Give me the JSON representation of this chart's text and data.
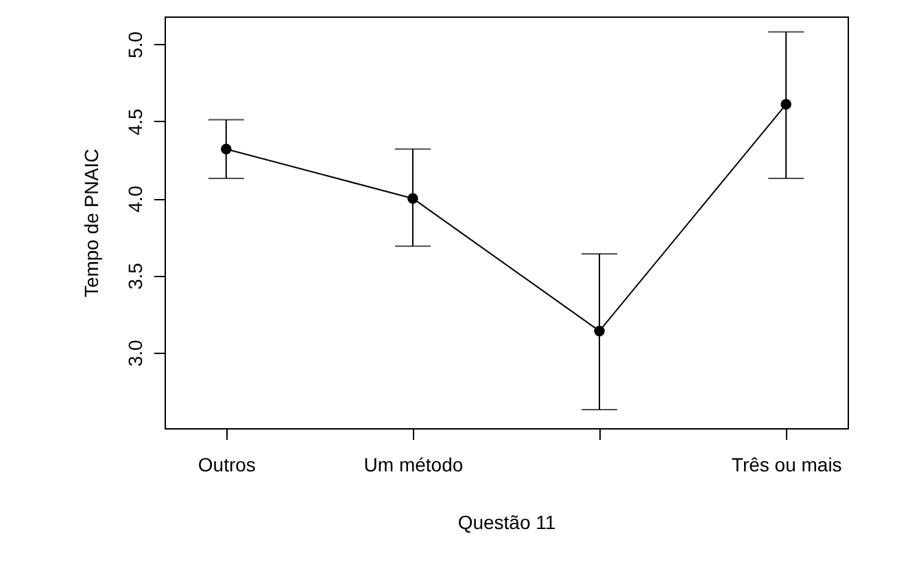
{
  "chart_data": {
    "type": "line",
    "xlabel": "Questão 11",
    "ylabel": "Tempo de PNAIC",
    "categories": [
      "Outros",
      "Um método",
      null,
      "Três ou mais"
    ],
    "values": [
      4.32,
      4.0,
      3.14,
      4.61
    ],
    "errors": [
      [
        4.13,
        4.51
      ],
      [
        3.69,
        4.32
      ],
      [
        2.63,
        3.64
      ],
      [
        4.13,
        5.08
      ]
    ],
    "color": "#000000",
    "marker": "circle",
    "line_style": "solid",
    "grid": false,
    "ylim": [
      2.51,
      5.18
    ],
    "yticks": [
      {
        "value": 3,
        "label": "3.0"
      },
      3.5,
      {
        "value": 4,
        "label": "4.0"
      },
      4.5,
      {
        "value": 5,
        "label": "5.0"
      }
    ]
  }
}
